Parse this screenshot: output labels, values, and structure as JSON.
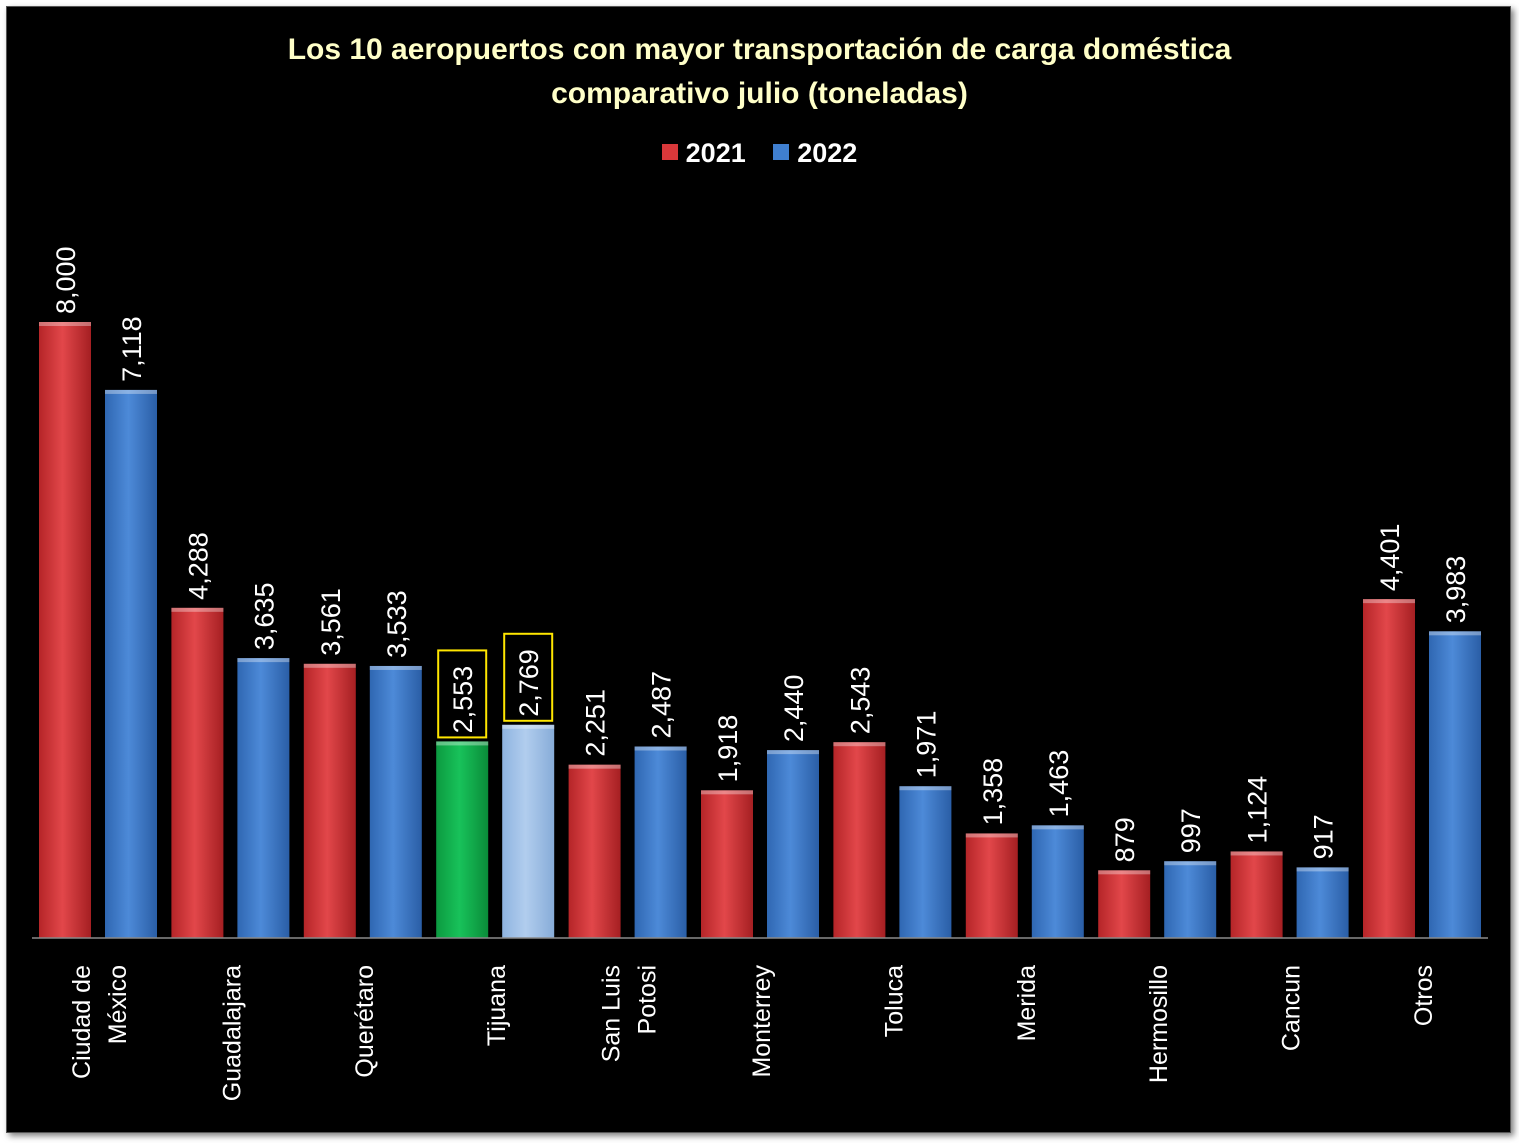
{
  "chart_data": {
    "type": "bar",
    "title": "Los 10 aeropuertos con mayor transportación de carga doméstica",
    "subtitle": "comparativo julio (toneladas)",
    "categories": [
      "Ciudad de México",
      "Guadalajara",
      "Querétaro",
      "Tijuana",
      "San Luis Potosi",
      "Monterrey",
      "Toluca",
      "Merida",
      "Hermosillo",
      "Cancun",
      "Otros"
    ],
    "series": [
      {
        "name": "2021",
        "color": "#d9383a",
        "values": [
          8000,
          4288,
          3561,
          2553,
          2251,
          1918,
          2543,
          1358,
          879,
          1124,
          4401
        ]
      },
      {
        "name": "2022",
        "color": "#3f7fd0",
        "values": [
          7118,
          3635,
          3533,
          2769,
          2487,
          2440,
          1971,
          1463,
          997,
          917,
          3983
        ]
      }
    ],
    "data_labels": [
      [
        "8,000",
        "4,288",
        "3,561",
        "2,553",
        "2,251",
        "1,918",
        "2,543",
        "1,358",
        "879",
        "1,124",
        "4,401"
      ],
      [
        "7,118",
        "3,635",
        "3,533",
        "2,769",
        "2,487",
        "2,440",
        "1,971",
        "1,463",
        "997",
        "917",
        "3,983"
      ]
    ],
    "highlight": {
      "category": "Tijuana",
      "colors": {
        "2021": "#13b24e",
        "2022": "#9ec1e8"
      },
      "label_box_color": "#ffe600"
    },
    "ylim": [
      0,
      8000
    ],
    "grid": false,
    "legend_position": "top",
    "background": "#000000",
    "title_color": "#ffffc8",
    "label_color": "#ffffff"
  }
}
